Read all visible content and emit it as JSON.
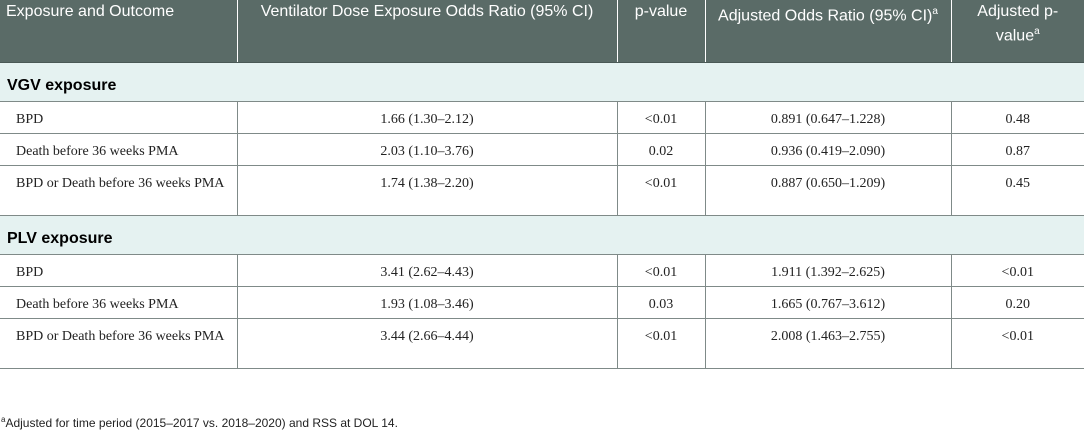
{
  "headers": {
    "col1": "Exposure and Outcome",
    "col2": "Ventilator Dose Exposure Odds Ratio (95% CI)",
    "col3": "p-value",
    "col4": "Adjusted Odds Ratio (95% CI)",
    "col4_marker": "a",
    "col5": "Adjusted p-value",
    "col5_marker": "a"
  },
  "sections": [
    {
      "title": "VGV exposure",
      "rows": [
        {
          "outcome": "BPD",
          "or": "1.66 (1.30–2.12)",
          "p": "<0.01",
          "aor": "0.891 (0.647–1.228)",
          "ap": "0.48"
        },
        {
          "outcome": "Death before 36 weeks PMA",
          "or": "2.03 (1.10–3.76)",
          "p": "0.02",
          "aor": "0.936 (0.419–2.090)",
          "ap": "0.87"
        },
        {
          "outcome": "BPD or Death before 36 weeks PMA",
          "or": "1.74 (1.38–2.20)",
          "p": "<0.01",
          "aor": "0.887 (0.650–1.209)",
          "ap": "0.45"
        }
      ]
    },
    {
      "title": "PLV exposure",
      "rows": [
        {
          "outcome": "BPD",
          "or": "3.41 (2.62–4.43)",
          "p": "<0.01",
          "aor": "1.911 (1.392–2.625)",
          "ap": "<0.01"
        },
        {
          "outcome": "Death before 36 weeks PMA",
          "or": "1.93 (1.08–3.46)",
          "p": "0.03",
          "aor": "1.665 (0.767–3.612)",
          "ap": "0.20"
        },
        {
          "outcome": "BPD or Death before 36 weeks PMA",
          "or": "3.44 (2.66–4.44)",
          "p": "<0.01",
          "aor": "2.008 (1.463–2.755)",
          "ap": "<0.01"
        }
      ]
    }
  ],
  "footnote": {
    "marker": "a",
    "text": "Adjusted for time period (2015–2017 vs. 2018–2020) and RSS at DOL 14."
  },
  "colors": {
    "header_bg": "#5a6b67",
    "section_bg": "#e5f2f1"
  }
}
